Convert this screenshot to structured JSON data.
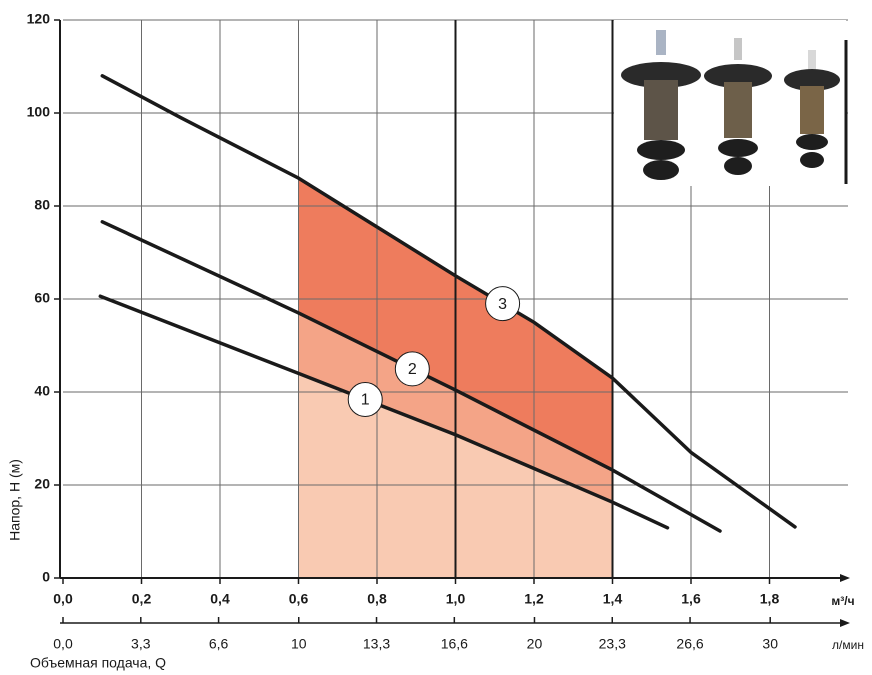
{
  "chart_data": {
    "type": "line",
    "y_label": "Напор, H (м)",
    "x_label": "Объемная подача, Q",
    "x_unit": "м³/ч",
    "x2_unit": "л/мин",
    "xlim": [
      0,
      2.0
    ],
    "xticks": [
      {
        "value": 0,
        "label": "0,0"
      },
      {
        "value": 0.2,
        "label": "0,2"
      },
      {
        "value": 0.4,
        "label": "0,4"
      },
      {
        "value": 0.6,
        "label": "0,6"
      },
      {
        "value": 0.8,
        "label": "0,8"
      },
      {
        "value": 1.0,
        "label": "1,0"
      },
      {
        "value": 1.2,
        "label": "1,2"
      },
      {
        "value": 1.4,
        "label": "1,4"
      },
      {
        "value": 1.6,
        "label": "1,6"
      },
      {
        "value": 1.8,
        "label": "1,8"
      }
    ],
    "x2lim": [
      0,
      33.3
    ],
    "x2ticks": [
      {
        "value": 0,
        "label": "0,0"
      },
      {
        "value": 3.3,
        "label": "3,3"
      },
      {
        "value": 6.6,
        "label": "6,6"
      },
      10,
      {
        "value": 13.3,
        "label": "13,3"
      },
      {
        "value": 16.6,
        "label": "16,6"
      },
      20,
      {
        "value": 23.3,
        "label": "23,3"
      },
      {
        "value": 26.6,
        "label": "26,6"
      },
      30
    ],
    "ylim": [
      0,
      120
    ],
    "yticks": [
      0,
      20,
      40,
      60,
      80,
      100,
      120
    ],
    "grid": true,
    "bold_gridlines_x": [
      1.0,
      1.4
    ],
    "highlight_range": [
      0.6,
      1.4
    ],
    "shade_colors": [
      "#f9cab2",
      "#f4a487",
      "#ee7c5d"
    ],
    "series": [
      {
        "name": "1",
        "color": "#1a1a1a",
        "x": [
          0.095,
          0.6,
          1.0,
          1.4,
          1.54
        ],
        "values": [
          60.6,
          44,
          30.8,
          16.3,
          10.8
        ]
      },
      {
        "name": "2",
        "color": "#1a1a1a",
        "x": [
          0.1,
          0.6,
          1.0,
          1.4,
          1.674
        ],
        "values": [
          76.6,
          57,
          40.4,
          23.2,
          10.1
        ]
      },
      {
        "name": "3",
        "color": "#1a1a1a",
        "x": [
          0.1,
          0.3,
          0.6,
          1.0,
          1.2,
          1.4,
          1.6,
          1.865
        ],
        "values": [
          108,
          99,
          86,
          65,
          55,
          43,
          27,
          11
        ]
      }
    ]
  }
}
